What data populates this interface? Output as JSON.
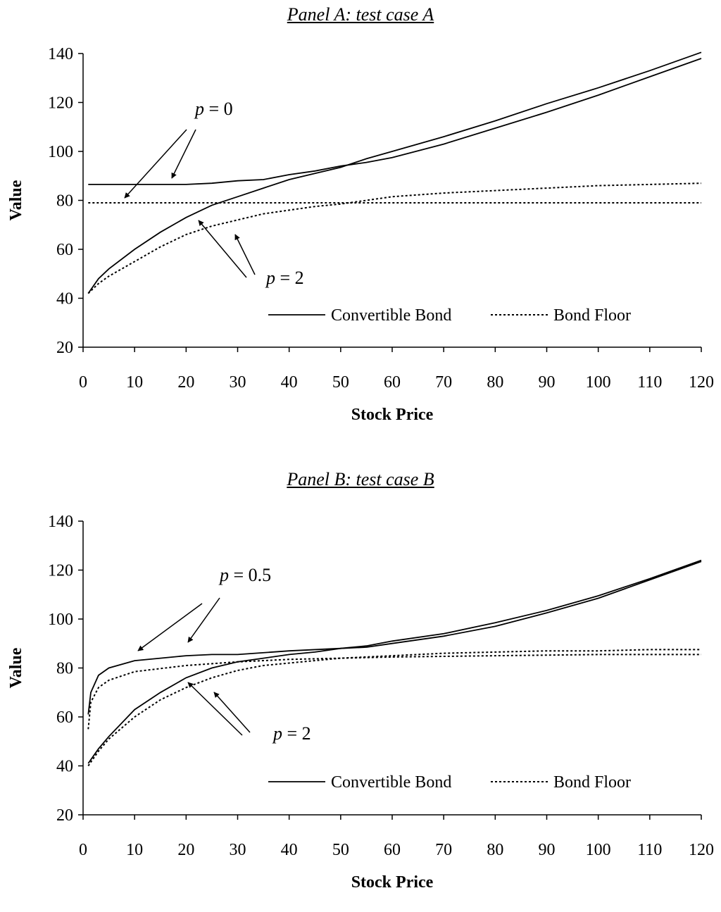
{
  "chart_data": [
    {
      "type": "line",
      "title": "Panel A: test case A",
      "xlabel": "Stock Price",
      "ylabel": "Value",
      "xlim": [
        0,
        120
      ],
      "ylim": [
        20,
        140
      ],
      "xticks": [
        0,
        10,
        20,
        30,
        40,
        50,
        60,
        70,
        80,
        90,
        100,
        110,
        120
      ],
      "yticks": [
        20,
        40,
        60,
        80,
        100,
        120,
        140
      ],
      "grid": false,
      "legend": {
        "placement": "bottom-right",
        "entries": [
          {
            "name": "Convertible Bond",
            "style": "solid"
          },
          {
            "name": "Bond Floor",
            "style": "dotted"
          }
        ]
      },
      "annotations": [
        {
          "var": "p",
          "text": " = 0",
          "target": "p0 curves"
        },
        {
          "var": "p",
          "text": " = 2",
          "target": "p2 curves"
        }
      ],
      "series": [
        {
          "legend_entry": "Convertible Bond",
          "p": "0",
          "style": "solid",
          "x": [
            1,
            5,
            10,
            15,
            20,
            25,
            30,
            35,
            40,
            45,
            50,
            55,
            60,
            70,
            80,
            90,
            100,
            110,
            120
          ],
          "y": [
            86.5,
            86.5,
            86.5,
            86.5,
            86.5,
            87,
            88,
            88.5,
            90.5,
            92,
            94,
            95.5,
            97.5,
            103,
            109.5,
            116,
            123,
            130.5,
            138
          ]
        },
        {
          "legend_entry": "Convertible Bond",
          "p": "2",
          "style": "solid",
          "x": [
            1,
            3,
            5,
            10,
            15,
            20,
            25,
            30,
            35,
            40,
            45,
            50,
            55,
            60,
            70,
            80,
            90,
            100,
            110,
            120
          ],
          "y": [
            42,
            48,
            52,
            60,
            67,
            73,
            78,
            81.5,
            85,
            88.5,
            91,
            93.5,
            97,
            100,
            106,
            112.5,
            119.5,
            126,
            133,
            140.5
          ]
        },
        {
          "legend_entry": "Bond Floor",
          "p": "0",
          "style": "dotted",
          "x": [
            1,
            20,
            40,
            60,
            80,
            100,
            120
          ],
          "y": [
            79,
            79,
            79,
            79,
            79,
            79,
            79
          ]
        },
        {
          "legend_entry": "Bond Floor",
          "p": "2",
          "style": "dotted",
          "x": [
            1,
            3,
            5,
            10,
            15,
            20,
            25,
            30,
            35,
            40,
            45,
            50,
            55,
            60,
            70,
            80,
            90,
            100,
            110,
            120
          ],
          "y": [
            42,
            46,
            49,
            55,
            61,
            66,
            69.5,
            72,
            74.5,
            76,
            77.5,
            78.5,
            80,
            81.5,
            83,
            84,
            85,
            86,
            86.5,
            87
          ]
        }
      ]
    },
    {
      "type": "line",
      "title": "Panel B: test case B",
      "xlabel": "Stock Price",
      "ylabel": "Value",
      "xlim": [
        0,
        120
      ],
      "ylim": [
        20,
        140
      ],
      "xticks": [
        0,
        10,
        20,
        30,
        40,
        50,
        60,
        70,
        80,
        90,
        100,
        110,
        120
      ],
      "yticks": [
        20,
        40,
        60,
        80,
        100,
        120,
        140
      ],
      "grid": false,
      "legend": {
        "placement": "bottom-right",
        "entries": [
          {
            "name": "Convertible Bond",
            "style": "solid"
          },
          {
            "name": "Bond Floor",
            "style": "dotted"
          }
        ]
      },
      "annotations": [
        {
          "var": "p",
          "text": " = 0.5",
          "target": "p0.5 curves"
        },
        {
          "var": "p",
          "text": " = 2",
          "target": "p2 curves"
        }
      ],
      "series": [
        {
          "legend_entry": "Convertible Bond",
          "p": "0.5",
          "style": "solid",
          "x": [
            1,
            1.5,
            3,
            5,
            10,
            15,
            20,
            25,
            30,
            40,
            50,
            55,
            60,
            70,
            80,
            90,
            100,
            110,
            120
          ],
          "y": [
            61,
            70,
            77,
            80,
            83,
            84,
            85,
            85.5,
            85.5,
            87,
            88,
            89,
            91,
            94,
            98.5,
            103.5,
            109.5,
            116.5,
            124
          ]
        },
        {
          "legend_entry": "Convertible Bond",
          "p": "2",
          "style": "solid",
          "x": [
            1,
            3,
            5,
            10,
            15,
            20,
            25,
            30,
            35,
            40,
            45,
            50,
            55,
            60,
            70,
            80,
            90,
            100,
            110,
            120
          ],
          "y": [
            41,
            47,
            52,
            63,
            70,
            76,
            80,
            82.5,
            84,
            85.5,
            86.5,
            88,
            88.5,
            90,
            93,
            97,
            102.5,
            108.5,
            116,
            123.5
          ]
        },
        {
          "legend_entry": "Bond Floor",
          "p": "0.5",
          "style": "dotted",
          "x": [
            1,
            1.5,
            3,
            5,
            10,
            20,
            30,
            40,
            50,
            60,
            80,
            100,
            120
          ],
          "y": [
            55,
            66,
            72,
            75,
            78.5,
            81,
            82.5,
            83.5,
            84,
            84.5,
            85,
            85.5,
            85.5
          ]
        },
        {
          "legend_entry": "Bond Floor",
          "p": "2",
          "style": "dotted",
          "x": [
            1,
            3,
            5,
            10,
            15,
            20,
            25,
            30,
            35,
            40,
            50,
            60,
            70,
            80,
            90,
            100,
            110,
            120
          ],
          "y": [
            40,
            46,
            51,
            60,
            67,
            72,
            76,
            79,
            81,
            82,
            84,
            85,
            86,
            86.5,
            87,
            87,
            87.5,
            87.5
          ]
        }
      ]
    }
  ]
}
